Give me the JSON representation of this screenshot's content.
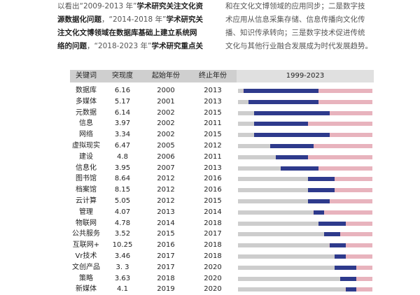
{
  "text_left": [
    {
      "parts": [
        {
          "t": "以看出“2009-2013 年”",
          "b": false
        },
        {
          "t": "学术研究关注文化资",
          "b": true
        }
      ]
    },
    {
      "parts": [
        {
          "t": "源数据化问题",
          "b": true
        },
        {
          "t": "，“2014-2018 年”",
          "b": false
        },
        {
          "t": "学术研究关",
          "b": true
        }
      ]
    },
    {
      "parts": [
        {
          "t": "注文化文博领域在数据库基础上建立系统网",
          "b": true
        }
      ]
    },
    {
      "parts": [
        {
          "t": "络的问题",
          "b": true
        },
        {
          "t": "，“2018-2023 年”",
          "b": false
        },
        {
          "t": "学术研究重点关",
          "b": true
        }
      ]
    }
  ],
  "text_right": [
    {
      "parts": [
        {
          "t": "和在文化文博领域的应用同步；二是数字技",
          "b": false
        }
      ]
    },
    {
      "parts": [
        {
          "t": "术应用从信息采集存储、信息传播向文化传",
          "b": false
        }
      ]
    },
    {
      "parts": [
        {
          "t": "播、知识传承转向；三是数字技术促进传统",
          "b": false
        }
      ]
    },
    {
      "parts": [
        {
          "t": "文化与其他行业融合发展成为时代发展趋势。",
          "b": false
        }
      ]
    }
  ],
  "table": {
    "headers": {
      "keyword": "关键词",
      "burst": "突现度",
      "start": "起始年份",
      "end": "终止年份",
      "range": "1999-2023"
    },
    "colors": {
      "active": "#2e3a8c",
      "after": "#e8b3bd",
      "before": "#cdcdcd"
    },
    "years": {
      "min": 1999,
      "max": 2023
    },
    "rows": [
      {
        "keyword": "数据库",
        "burst": "6.16",
        "start": "2000",
        "end": "2013"
      },
      {
        "keyword": "多媒体",
        "burst": "5.17",
        "start": "2001",
        "end": "2013"
      },
      {
        "keyword": "元数据",
        "burst": "6.14",
        "start": "2002",
        "end": "2015"
      },
      {
        "keyword": "信息",
        "burst": "3.97",
        "start": "2002",
        "end": "2011"
      },
      {
        "keyword": "网络",
        "burst": "3.34",
        "start": "2002",
        "end": "2015"
      },
      {
        "keyword": "虚拟现实",
        "burst": "6.47",
        "start": "2005",
        "end": "2012"
      },
      {
        "keyword": "建设",
        "burst": "4.8",
        "start": "2006",
        "end": "2011"
      },
      {
        "keyword": "信息化",
        "burst": "3.95",
        "start": "2007",
        "end": "2013"
      },
      {
        "keyword": "图书馆",
        "burst": "8.64",
        "start": "2012",
        "end": "2016"
      },
      {
        "keyword": "档案馆",
        "burst": "8.15",
        "start": "2012",
        "end": "2016"
      },
      {
        "keyword": "云计算",
        "burst": "5.05",
        "start": "2012",
        "end": "2015"
      },
      {
        "keyword": "管理",
        "burst": "4.07",
        "start": "2013",
        "end": "2014"
      },
      {
        "keyword": "物联网",
        "burst": "4.78",
        "start": "2014",
        "end": "2018"
      },
      {
        "keyword": "公共服务",
        "burst": "3.52",
        "start": "2015",
        "end": "2017"
      },
      {
        "keyword": "互联网+",
        "burst": "10.25",
        "start": "2016",
        "end": "2018"
      },
      {
        "keyword": "Vr技术",
        "burst": "3.46",
        "start": "2017",
        "end": "2018"
      },
      {
        "keyword": "文创产品",
        "burst": "3. 3",
        "start": "2017",
        "end": "2020"
      },
      {
        "keyword": "策略",
        "burst": "3.63",
        "start": "2018",
        "end": "2020"
      },
      {
        "keyword": "新媒体",
        "burst": "4.1",
        "start": "2019",
        "end": "2020"
      }
    ]
  }
}
